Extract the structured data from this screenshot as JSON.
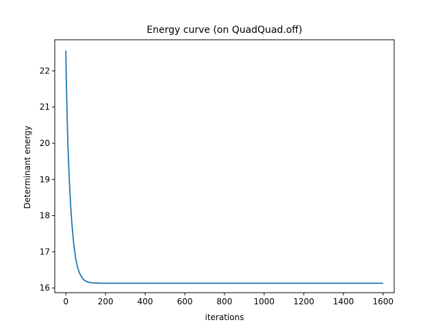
{
  "chart_data": {
    "type": "line",
    "title": "Energy curve (on QuadQuad.off)",
    "xlabel": "iterations",
    "ylabel": "Determinant energy",
    "xlim": [
      -56,
      1656
    ],
    "ylim": [
      15.87,
      22.86
    ],
    "xticks": [
      0,
      200,
      400,
      600,
      800,
      1000,
      1200,
      1400,
      1600
    ],
    "yticks": [
      16,
      17,
      18,
      19,
      20,
      21,
      22
    ],
    "grid": false,
    "legend": "none",
    "series": [
      {
        "color": "#1f77b4",
        "x": [
          0,
          2,
          5,
          10,
          15,
          20,
          25,
          30,
          40,
          50,
          60,
          70,
          80,
          90,
          100,
          120,
          140,
          160,
          180,
          200,
          250,
          300,
          400,
          600,
          800,
          1000,
          1200,
          1400,
          1600
        ],
        "y": [
          22.56,
          21.8,
          21.1,
          20.0,
          19.3,
          18.7,
          18.2,
          17.8,
          17.2,
          16.8,
          16.55,
          16.4,
          16.3,
          16.23,
          16.19,
          16.15,
          16.14,
          16.135,
          16.13,
          16.13,
          16.13,
          16.13,
          16.13,
          16.13,
          16.13,
          16.13,
          16.13,
          16.13,
          16.13
        ]
      }
    ]
  }
}
